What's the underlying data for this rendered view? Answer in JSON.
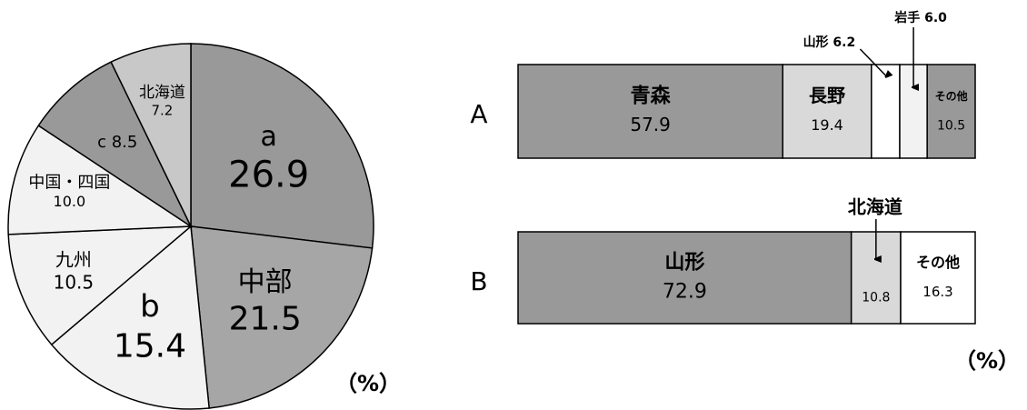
{
  "chart_data": [
    {
      "type": "pie",
      "unit": "（%）",
      "slices": [
        {
          "lines": [
            "a",
            "26.9"
          ],
          "value": 26.9,
          "color": "#999999"
        },
        {
          "lines": [
            "中部",
            "21.5"
          ],
          "value": 21.5,
          "color": "#a6a6a6"
        },
        {
          "lines": [
            "b",
            "15.4"
          ],
          "value": 15.4,
          "color": "#f2f2f2"
        },
        {
          "lines": [
            "九州",
            "10.5"
          ],
          "value": 10.5,
          "color": "#f2f2f2"
        },
        {
          "lines": [
            "中国・四国",
            "10.0"
          ],
          "value": 10.0,
          "color": "#f2f2f2"
        },
        {
          "lines": [
            "c 8.5"
          ],
          "value": 8.5,
          "color": "#999999"
        },
        {
          "lines": [
            "北海道",
            "7.2"
          ],
          "value": 7.2,
          "color": "#c8c8c8"
        }
      ]
    },
    {
      "type": "bar",
      "stacked": true,
      "orientation": "horizontal",
      "unit": "（%）",
      "bars": [
        {
          "label": "A",
          "segments": [
            {
              "name": "青森",
              "value": 57.9,
              "value_label": "57.9",
              "color": "#999999"
            },
            {
              "name": "長野",
              "value": 19.4,
              "value_label": "19.4",
              "color": "#d9d9d9"
            },
            {
              "name": "山形",
              "value": 6.2,
              "value_label": "6.2",
              "color": "#ffffff"
            },
            {
              "name": "岩手",
              "value": 6.0,
              "value_label": "6.0",
              "color": "#f2f2f2"
            },
            {
              "name": "その他",
              "value": 10.5,
              "value_label": "10.5",
              "color": "#999999"
            }
          ],
          "callouts": [
            "山形 6.2",
            "岩手 6.0"
          ]
        },
        {
          "label": "B",
          "segments": [
            {
              "name": "山形",
              "value": 72.9,
              "value_label": "72.9",
              "color": "#999999"
            },
            {
              "name": "北海道",
              "value": 10.8,
              "value_label": "10.8",
              "color": "#d9d9d9"
            },
            {
              "name": "その他",
              "value": 16.3,
              "value_label": "16.3",
              "color": "#ffffff"
            }
          ],
          "callouts": [
            "北海道"
          ]
        }
      ]
    }
  ]
}
